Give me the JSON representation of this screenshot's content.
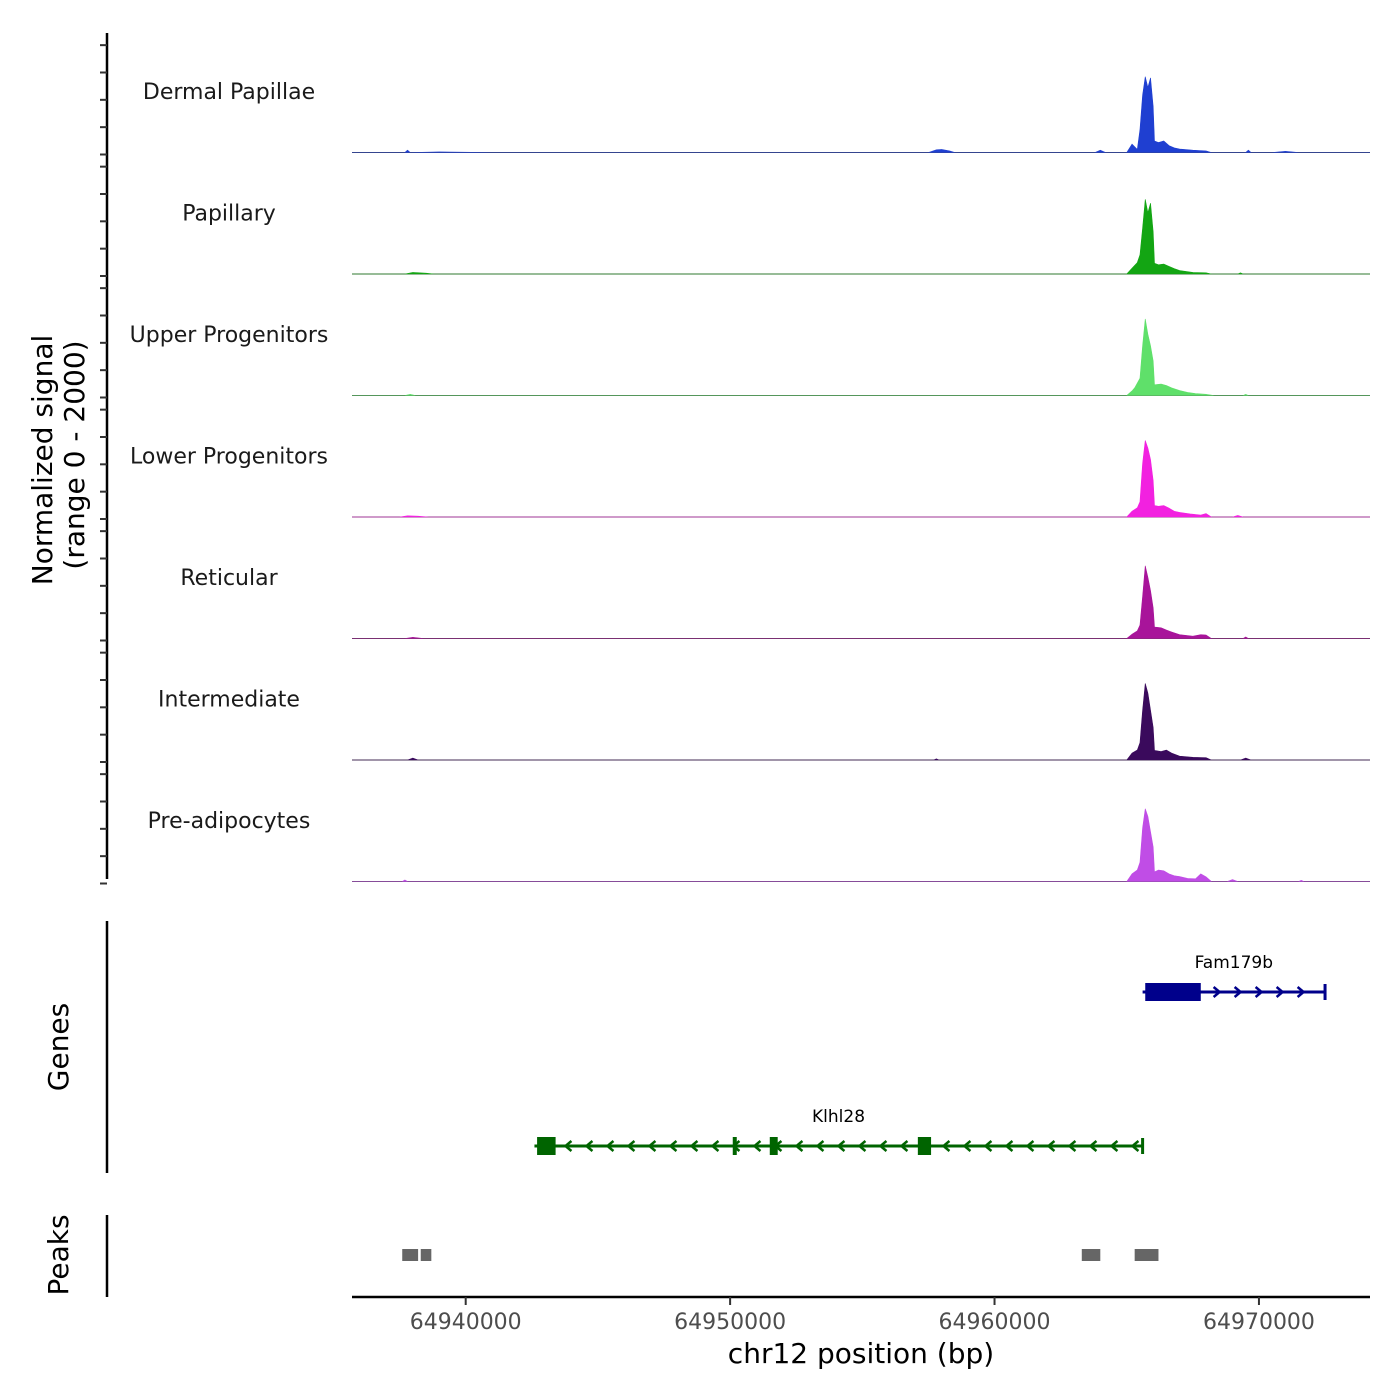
{
  "chart_data": {
    "type": "coverage-track",
    "y_axis_title_line1": "Normalized signal",
    "y_axis_title_line2": "(range 0 - 2000)",
    "x_axis_title": "chr12 position (bp)",
    "x_range": [
      64935700,
      64974200
    ],
    "x_ticks": [
      64940000,
      64950000,
      64960000,
      64970000
    ],
    "x_tick_labels": [
      "64940000",
      "64950000",
      "64960000",
      "64970000"
    ],
    "y_range": [
      0,
      2000
    ],
    "tracks": [
      {
        "name": "Dermal Papillae",
        "color": "#1f3fd1",
        "points": [
          [
            64937700,
            0
          ],
          [
            64937800,
            60
          ],
          [
            64937900,
            0
          ],
          [
            64939000,
            15
          ],
          [
            64941000,
            0
          ],
          [
            64957500,
            0
          ],
          [
            64957800,
            70
          ],
          [
            64958000,
            80
          ],
          [
            64958300,
            40
          ],
          [
            64958500,
            0
          ],
          [
            64963800,
            0
          ],
          [
            64964000,
            60
          ],
          [
            64964200,
            0
          ],
          [
            64965000,
            0
          ],
          [
            64965200,
            220
          ],
          [
            64965400,
            80
          ],
          [
            64965500,
            600
          ],
          [
            64965600,
            1500
          ],
          [
            64965700,
            1980
          ],
          [
            64965800,
            1700
          ],
          [
            64965900,
            1950
          ],
          [
            64966000,
            1200
          ],
          [
            64966050,
            300
          ],
          [
            64966200,
            260
          ],
          [
            64966400,
            300
          ],
          [
            64966600,
            180
          ],
          [
            64966800,
            120
          ],
          [
            64967000,
            90
          ],
          [
            64967500,
            60
          ],
          [
            64968000,
            40
          ],
          [
            64968200,
            0
          ],
          [
            64969500,
            0
          ],
          [
            64969600,
            60
          ],
          [
            64969700,
            0
          ],
          [
            64970500,
            0
          ],
          [
            64971000,
            30
          ],
          [
            64971500,
            0
          ]
        ]
      },
      {
        "name": "Papillary",
        "color": "#13a513",
        "points": [
          [
            64937700,
            0
          ],
          [
            64938000,
            40
          ],
          [
            64938500,
            20
          ],
          [
            64938800,
            0
          ],
          [
            64965000,
            0
          ],
          [
            64965200,
            150
          ],
          [
            64965400,
            300
          ],
          [
            64965500,
            500
          ],
          [
            64965600,
            1200
          ],
          [
            64965700,
            1950
          ],
          [
            64965800,
            1600
          ],
          [
            64965900,
            1850
          ],
          [
            64966000,
            1100
          ],
          [
            64966050,
            280
          ],
          [
            64966200,
            240
          ],
          [
            64966400,
            260
          ],
          [
            64966600,
            200
          ],
          [
            64966800,
            140
          ],
          [
            64967000,
            90
          ],
          [
            64967500,
            40
          ],
          [
            64968000,
            30
          ],
          [
            64968200,
            0
          ],
          [
            64969200,
            0
          ],
          [
            64969300,
            30
          ],
          [
            64969400,
            0
          ],
          [
            64972000,
            0
          ]
        ]
      },
      {
        "name": "Upper Progenitors",
        "color": "#5fe06a",
        "points": [
          [
            64937700,
            0
          ],
          [
            64937900,
            30
          ],
          [
            64938100,
            0
          ],
          [
            64965000,
            0
          ],
          [
            64965200,
            120
          ],
          [
            64965300,
            200
          ],
          [
            64965500,
            450
          ],
          [
            64965600,
            1300
          ],
          [
            64965700,
            2000
          ],
          [
            64965800,
            1600
          ],
          [
            64965900,
            1300
          ],
          [
            64966000,
            900
          ],
          [
            64966050,
            280
          ],
          [
            64966300,
            300
          ],
          [
            64966500,
            260
          ],
          [
            64966700,
            200
          ],
          [
            64967000,
            130
          ],
          [
            64967300,
            80
          ],
          [
            64967600,
            50
          ],
          [
            64968000,
            30
          ],
          [
            64968300,
            0
          ],
          [
            64969400,
            0
          ],
          [
            64969500,
            30
          ],
          [
            64969600,
            0
          ]
        ]
      },
      {
        "name": "Lower Progenitors",
        "color": "#f221e0",
        "points": [
          [
            64937500,
            0
          ],
          [
            64937800,
            30
          ],
          [
            64938200,
            20
          ],
          [
            64938600,
            0
          ],
          [
            64965000,
            0
          ],
          [
            64965200,
            150
          ],
          [
            64965400,
            240
          ],
          [
            64965500,
            400
          ],
          [
            64965600,
            1400
          ],
          [
            64965700,
            2000
          ],
          [
            64965800,
            1800
          ],
          [
            64965900,
            1500
          ],
          [
            64966000,
            950
          ],
          [
            64966050,
            300
          ],
          [
            64966200,
            280
          ],
          [
            64966400,
            300
          ],
          [
            64966600,
            230
          ],
          [
            64966800,
            150
          ],
          [
            64967000,
            120
          ],
          [
            64967400,
            80
          ],
          [
            64967800,
            50
          ],
          [
            64968000,
            90
          ],
          [
            64968200,
            0
          ],
          [
            64969000,
            0
          ],
          [
            64969200,
            40
          ],
          [
            64969400,
            0
          ]
        ]
      },
      {
        "name": "Reticular",
        "color": "#a8149a",
        "points": [
          [
            64937700,
            0
          ],
          [
            64938000,
            30
          ],
          [
            64938400,
            0
          ],
          [
            64965000,
            0
          ],
          [
            64965200,
            110
          ],
          [
            64965400,
            200
          ],
          [
            64965500,
            350
          ],
          [
            64965600,
            1100
          ],
          [
            64965700,
            1900
          ],
          [
            64965800,
            1600
          ],
          [
            64965900,
            1250
          ],
          [
            64966000,
            800
          ],
          [
            64966050,
            300
          ],
          [
            64966300,
            280
          ],
          [
            64966500,
            220
          ],
          [
            64966700,
            170
          ],
          [
            64967000,
            100
          ],
          [
            64967500,
            60
          ],
          [
            64967800,
            100
          ],
          [
            64968000,
            90
          ],
          [
            64968200,
            0
          ],
          [
            64969400,
            0
          ],
          [
            64969500,
            40
          ],
          [
            64969600,
            0
          ]
        ]
      },
      {
        "name": "Intermediate",
        "color": "#3a0a5c",
        "points": [
          [
            64937800,
            0
          ],
          [
            64938000,
            50
          ],
          [
            64938200,
            0
          ],
          [
            64957700,
            0
          ],
          [
            64957800,
            30
          ],
          [
            64957900,
            0
          ],
          [
            64965000,
            0
          ],
          [
            64965200,
            180
          ],
          [
            64965400,
            260
          ],
          [
            64965500,
            450
          ],
          [
            64965600,
            1300
          ],
          [
            64965700,
            2000
          ],
          [
            64965800,
            1750
          ],
          [
            64965900,
            1300
          ],
          [
            64966000,
            850
          ],
          [
            64966050,
            250
          ],
          [
            64966300,
            220
          ],
          [
            64966500,
            260
          ],
          [
            64966700,
            180
          ],
          [
            64967000,
            100
          ],
          [
            64967500,
            70
          ],
          [
            64968000,
            60
          ],
          [
            64968200,
            0
          ],
          [
            64969300,
            0
          ],
          [
            64969500,
            50
          ],
          [
            64969700,
            0
          ]
        ]
      },
      {
        "name": "Pre-adipocytes",
        "color": "#c04de6",
        "points": [
          [
            64937600,
            0
          ],
          [
            64937700,
            40
          ],
          [
            64937800,
            0
          ],
          [
            64965000,
            0
          ],
          [
            64965200,
            200
          ],
          [
            64965400,
            300
          ],
          [
            64965500,
            500
          ],
          [
            64965600,
            1400
          ],
          [
            64965700,
            1900
          ],
          [
            64965800,
            1700
          ],
          [
            64965900,
            1300
          ],
          [
            64966000,
            900
          ],
          [
            64966050,
            250
          ],
          [
            64966200,
            300
          ],
          [
            64966400,
            280
          ],
          [
            64966600,
            200
          ],
          [
            64966800,
            150
          ],
          [
            64967000,
            130
          ],
          [
            64967300,
            80
          ],
          [
            64967600,
            70
          ],
          [
            64967800,
            200
          ],
          [
            64968000,
            120
          ],
          [
            64968200,
            0
          ],
          [
            64968800,
            0
          ],
          [
            64969000,
            50
          ],
          [
            64969200,
            0
          ],
          [
            64971500,
            0
          ],
          [
            64971600,
            30
          ],
          [
            64971700,
            0
          ]
        ]
      }
    ],
    "genes_axis_title": "Genes",
    "genes": [
      {
        "name": "Fam179b",
        "strand": "+",
        "color": "#00008b",
        "start": 64965600,
        "end": 64972500,
        "exons": [
          [
            64965700,
            64967800
          ]
        ]
      },
      {
        "name": "Klhl28",
        "strand": "-",
        "color": "#006400",
        "start": 64942600,
        "end": 64965600,
        "exons": [
          [
            64942700,
            64943400
          ],
          [
            64950100,
            64950200
          ],
          [
            64951500,
            64951800
          ],
          [
            64957100,
            64957600
          ]
        ]
      }
    ],
    "peaks_axis_title": "Peaks",
    "peaks_color": "#666666",
    "peaks": [
      [
        64937600,
        64938200
      ],
      [
        64938300,
        64938700
      ],
      [
        64963300,
        64964000
      ],
      [
        64965300,
        64966200
      ]
    ]
  }
}
